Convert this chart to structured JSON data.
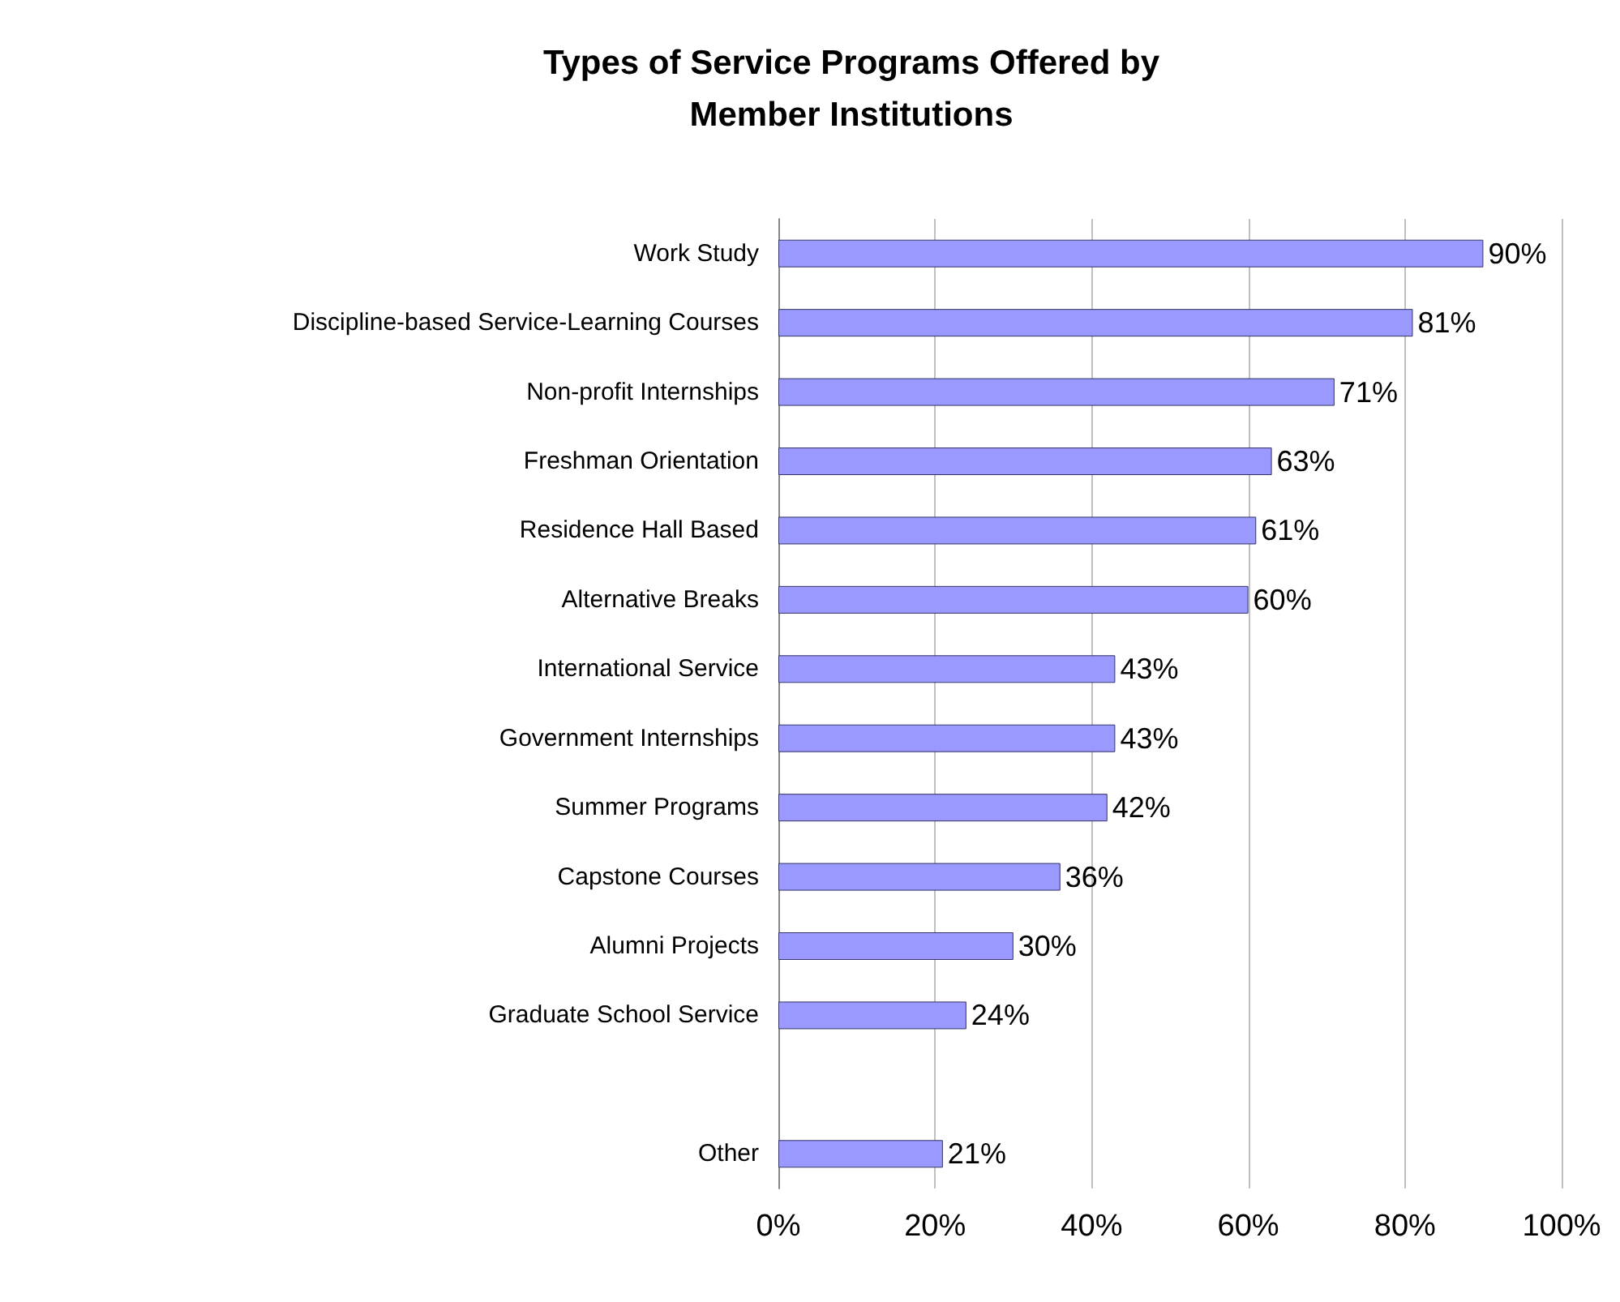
{
  "chart_data": {
    "type": "bar",
    "orientation": "horizontal",
    "title": "Types of Service Programs Offered by\nMember Institutions",
    "categories": [
      "Work Study",
      "Discipline-based Service-Learning Courses",
      "Non-profit Internships",
      "Freshman Orientation",
      "Residence Hall Based",
      "Alternative Breaks",
      "International Service",
      "Government Internships",
      "Summer Programs",
      "Capstone Courses",
      "Alumni Projects",
      "Graduate School Service",
      null,
      "Other"
    ],
    "values": [
      90,
      81,
      71,
      63,
      61,
      60,
      43,
      43,
      42,
      36,
      30,
      24,
      null,
      21
    ],
    "value_labels": [
      "90%",
      "81%",
      "71%",
      "63%",
      "61%",
      "60%",
      "43%",
      "43%",
      "42%",
      "36%",
      "30%",
      "24%",
      null,
      "21%"
    ],
    "color": "#9999ff",
    "xlim": [
      0,
      100
    ],
    "xticks": [
      {
        "value": 0,
        "label": "0%"
      },
      {
        "value": 20,
        "label": "20%"
      },
      {
        "value": 40,
        "label": "40%"
      },
      {
        "value": 60,
        "label": "60%"
      },
      {
        "value": 80,
        "label": "80%"
      },
      {
        "value": 100,
        "label": "100%"
      }
    ],
    "grid": "x"
  }
}
